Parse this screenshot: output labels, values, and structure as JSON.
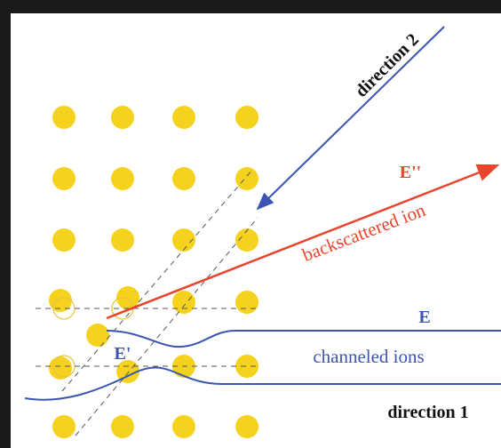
{
  "labels": {
    "direction_2": "direction 2",
    "e_double_prime": "E''",
    "backscattered": "backscattered ion",
    "e": "E",
    "channeled": "channeled ions",
    "e_prime": "E'",
    "direction_1": "direction 1"
  }
}
